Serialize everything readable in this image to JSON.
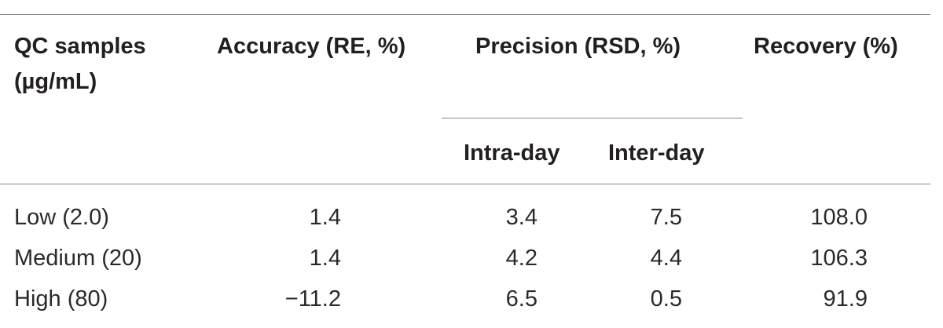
{
  "table": {
    "headers": {
      "qc_samples_line1": "QC samples",
      "qc_samples_line2": "(µg/mL)",
      "accuracy": "Accuracy (RE, %)",
      "precision": "Precision (RSD, %)",
      "recovery": "Recovery (%)",
      "intra_day": "Intra-day",
      "inter_day": "Inter-day"
    },
    "rows": [
      {
        "sample": "Low (2.0)",
        "accuracy": "1.4",
        "intra_day": "3.4",
        "inter_day": "7.5",
        "recovery": "108.0"
      },
      {
        "sample": "Medium (20)",
        "accuracy": "1.4",
        "intra_day": "4.2",
        "inter_day": "4.4",
        "recovery": "106.3"
      },
      {
        "sample": "High (80)",
        "accuracy": "−11.2",
        "intra_day": "6.5",
        "inter_day": "0.5",
        "recovery": "91.9"
      }
    ]
  }
}
